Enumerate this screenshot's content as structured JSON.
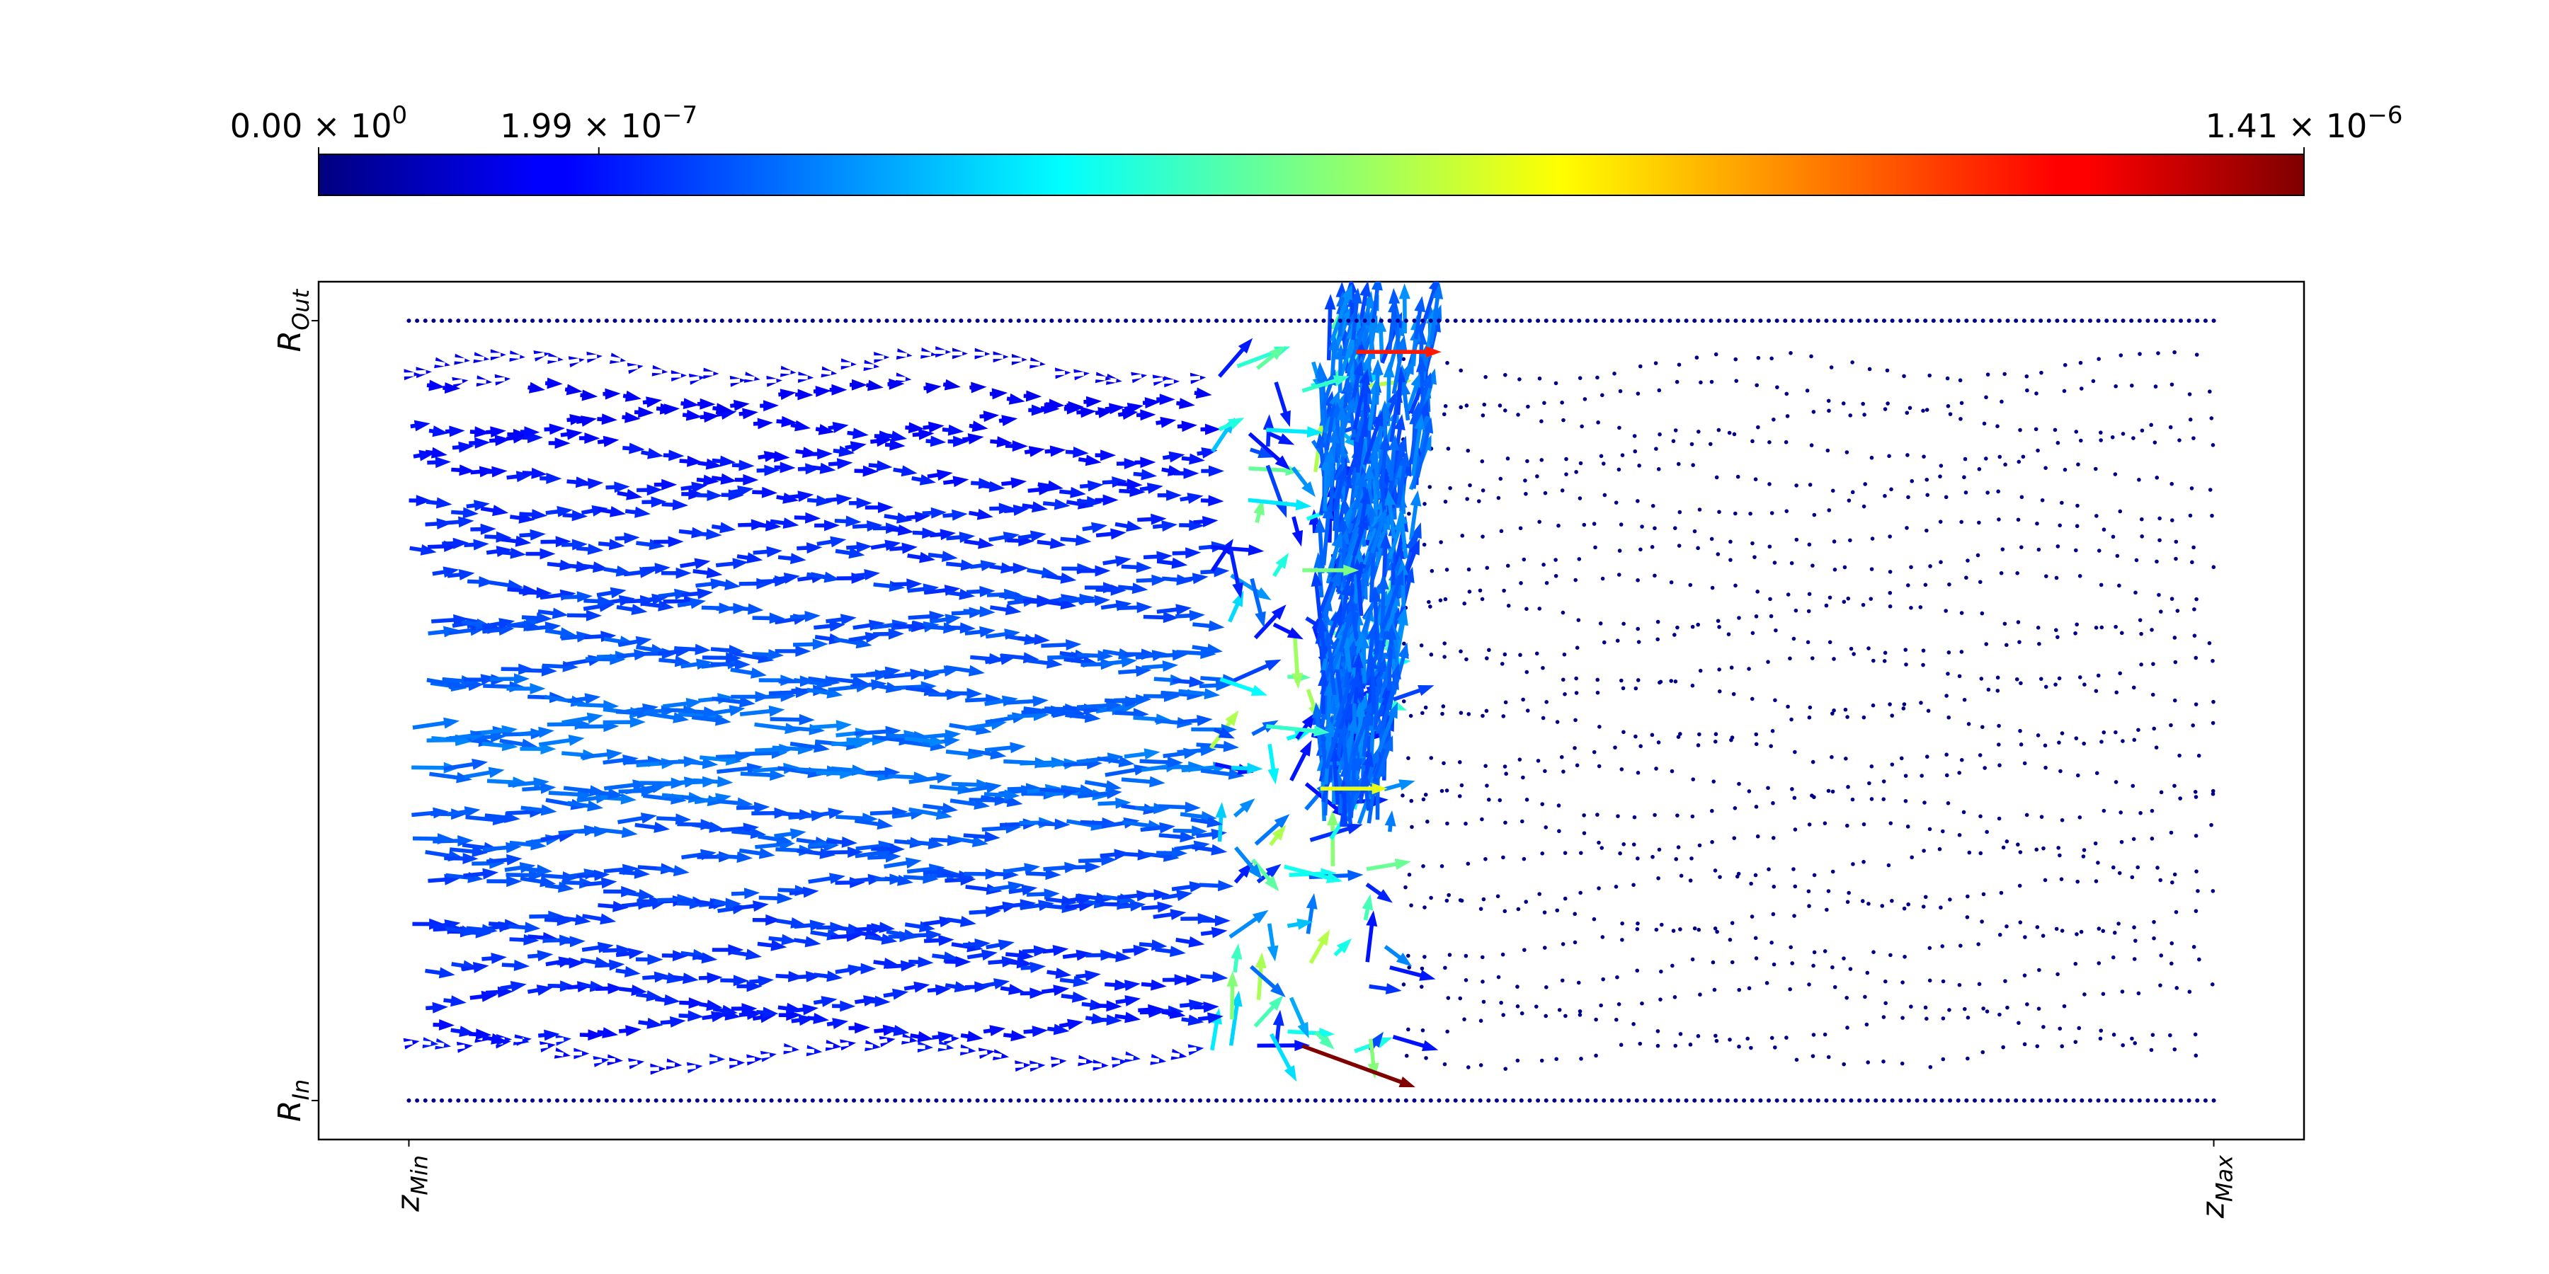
{
  "chart_data": {
    "type": "scatter",
    "subtype": "quiver",
    "title": "",
    "xlabel": "",
    "ylabel": "",
    "x_ticks": [
      {
        "value": 0,
        "mantissa": "z",
        "sub": "Min"
      },
      {
        "value": 1,
        "mantissa": "z",
        "sub": "Max"
      }
    ],
    "y_ticks": [
      {
        "value": 0,
        "mantissa": "R",
        "sub": "In"
      },
      {
        "value": 1,
        "mantissa": "R",
        "sub": "Out"
      }
    ],
    "xlim": [
      -0.05,
      1.05
    ],
    "ylim": [
      -0.05,
      1.05
    ],
    "grid": false,
    "colorbar": {
      "placement": "top",
      "colormap": "jet",
      "range": [
        0,
        1.41e-06
      ],
      "ticks": [
        {
          "value": 0,
          "mantissa": "0.00",
          "exponent": "0"
        },
        {
          "value": 1.99e-07,
          "mantissa": "1.99",
          "exponent": "−7"
        },
        {
          "value": 1.41e-06,
          "mantissa": "1.41",
          "exponent": "−6"
        }
      ]
    },
    "boundary_rows": [
      {
        "name": "",
        "y": 1.0,
        "x_range": [
          0,
          1
        ],
        "count": 220,
        "color": "#00008b",
        "magnitude": 0
      },
      {
        "name": "",
        "y": 0.0,
        "x_range": [
          0,
          1
        ],
        "count": 220,
        "color": "#00008b",
        "magnitude": 0
      }
    ],
    "regions": [
      {
        "x_range": [
          0.0,
          0.44
        ],
        "y_range": [
          0.05,
          0.95
        ],
        "magnitude_range": [
          1.5e-07,
          3.4e-07
        ],
        "direction": "+z"
      },
      {
        "x_range": [
          0.44,
          0.55
        ],
        "y_range": [
          0.02,
          1.0
        ],
        "magnitude_range": [
          2e-07,
          1.41e-06
        ],
        "direction": "mixed"
      },
      {
        "x_range": [
          0.55,
          1.0
        ],
        "y_range": [
          0.05,
          0.95
        ],
        "magnitude_range": [
          0,
          0
        ],
        "direction": "none"
      }
    ]
  },
  "colors": {
    "frame": "#000000",
    "static_point": "#00008b",
    "jet": [
      "#00007f",
      "#0000ff",
      "#007fff",
      "#00ffff",
      "#7fff7f",
      "#ffff00",
      "#ff7f00",
      "#ff0000",
      "#7f0000"
    ]
  }
}
